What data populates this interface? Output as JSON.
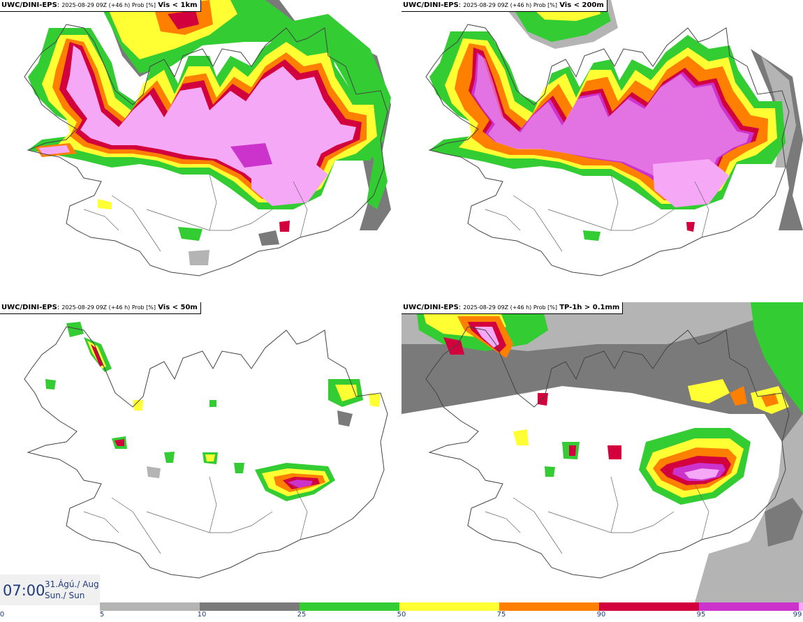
{
  "panels": [
    {
      "source": "UWC/DINI-EPS",
      "run": "2025-08-29 09Z (+46 h) Prob [%]",
      "variable": "Vis < 1km"
    },
    {
      "source": "UWC/DINI-EPS",
      "run": "2025-08-29 09Z (+46 h) Prob [%]",
      "variable": "Vis < 200m"
    },
    {
      "source": "UWC/DINI-EPS",
      "run": "2025-08-29 09Z (+46 h) Prob [%]",
      "variable": "Vis < 50m"
    },
    {
      "source": "UWC/DINI-EPS",
      "run": "2025-08-29 09Z (+46 h) Prob [%]",
      "variable": "TP-1h > 0.1mm"
    }
  ],
  "valid_time": {
    "time": "07:00",
    "date_line": "31.Ágú./ Aug",
    "day_line": "Sun./ Sun"
  },
  "colorbar": {
    "ticks": [
      "0",
      "5",
      "10",
      "25",
      "50",
      "75",
      "90",
      "95",
      "99"
    ],
    "bins": [
      {
        "from": 5,
        "to": 10,
        "color": "#b4b4b4"
      },
      {
        "from": 10,
        "to": 25,
        "color": "#7a7a7a"
      },
      {
        "from": 25,
        "to": 50,
        "color": "#33cc33"
      },
      {
        "from": 50,
        "to": 75,
        "color": "#ffff33"
      },
      {
        "from": 75,
        "to": 90,
        "color": "#ff7f00"
      },
      {
        "from": 90,
        "to": 95,
        "color": "#d2003c"
      },
      {
        "from": 95,
        "to": 99,
        "color": "#cc33cc"
      },
      {
        "from": 99,
        "to": 100,
        "color": "#f5a8f5"
      }
    ]
  }
}
